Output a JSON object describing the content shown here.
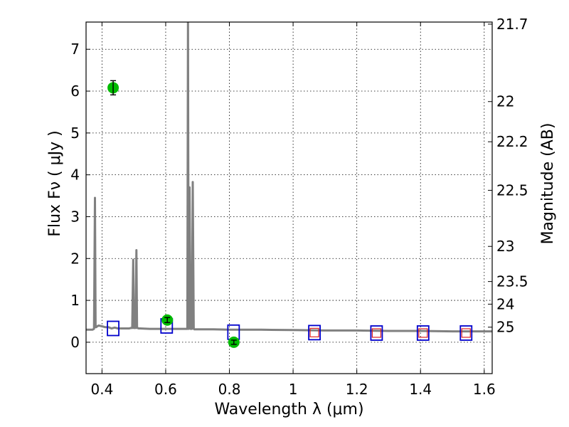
{
  "chart_data": {
    "type": "line",
    "xlabel": "Wavelength  λ (μm)",
    "ylabel": "Flux  Fν  ( μJy )",
    "y2label": "Magnitude (AB)",
    "xlim": [
      0.35,
      1.625
    ],
    "ylim": [
      -0.75,
      7.65
    ],
    "grid": true,
    "x_ticks": [
      0.4,
      0.6,
      0.8,
      1.0,
      1.2,
      1.4,
      1.6
    ],
    "x_tick_labels": [
      "0.4",
      "0.6",
      "0.8",
      "1",
      "1.2",
      "1.4",
      "1.6"
    ],
    "y_ticks": [
      0,
      1,
      2,
      3,
      4,
      5,
      6,
      7
    ],
    "y_tick_labels": [
      "0",
      "1",
      "2",
      "3",
      "4",
      "5",
      "6",
      "7"
    ],
    "y2_ticks": [
      {
        "label": "21.7",
        "flux": 7.6
      },
      {
        "label": "22",
        "flux": 5.75
      },
      {
        "label": "22.2",
        "flux": 4.79
      },
      {
        "label": "22.5",
        "flux": 3.63
      },
      {
        "label": "23",
        "flux": 2.29
      },
      {
        "label": "23.5",
        "flux": 1.45
      },
      {
        "label": "24",
        "flux": 0.91
      },
      {
        "label": "25",
        "flux": 0.36
      }
    ],
    "model_spectrum": {
      "color": "#808080",
      "x": [
        0.35,
        0.37,
        0.375,
        0.378,
        0.38,
        0.382,
        0.385,
        0.39,
        0.4,
        0.41,
        0.42,
        0.43,
        0.44,
        0.45,
        0.47,
        0.48,
        0.485,
        0.49,
        0.495,
        0.498,
        0.5,
        0.503,
        0.505,
        0.508,
        0.51,
        0.512,
        0.515,
        0.52,
        0.55,
        0.6,
        0.63,
        0.655,
        0.66,
        0.663,
        0.665,
        0.668,
        0.67,
        0.672,
        0.675,
        0.678,
        0.68,
        0.682,
        0.685,
        0.688,
        0.69,
        0.7,
        0.75,
        0.8,
        0.85,
        0.9,
        1.0,
        1.1,
        1.2,
        1.3,
        1.4,
        1.5,
        1.625
      ],
      "y": [
        0.3,
        0.3,
        0.32,
        3.45,
        0.36,
        0.36,
        0.38,
        0.4,
        0.38,
        0.36,
        0.36,
        0.33,
        0.35,
        0.33,
        0.33,
        0.33,
        0.33,
        0.34,
        0.34,
        1.97,
        0.34,
        0.34,
        0.34,
        2.2,
        0.34,
        0.34,
        0.33,
        0.33,
        0.32,
        0.32,
        0.32,
        0.32,
        0.32,
        0.32,
        0.32,
        0.32,
        7.65,
        0.32,
        3.7,
        0.32,
        0.32,
        0.32,
        3.83,
        0.32,
        0.31,
        0.31,
        0.31,
        0.3,
        0.3,
        0.3,
        0.29,
        0.28,
        0.28,
        0.27,
        0.27,
        0.26,
        0.26
      ]
    },
    "observed": {
      "color": "#00bb00",
      "points": [
        {
          "x": 0.435,
          "y": 6.08,
          "err": 0.17
        },
        {
          "x": 0.605,
          "y": 0.53,
          "err": 0.06
        },
        {
          "x": 0.814,
          "y": 0.0,
          "err": 0.05
        }
      ]
    },
    "model_bands": {
      "color": "#0000cc",
      "points": [
        {
          "x": 0.435,
          "y": 0.33
        },
        {
          "x": 0.603,
          "y": 0.39
        },
        {
          "x": 0.813,
          "y": 0.24
        },
        {
          "x": 1.067,
          "y": 0.23
        },
        {
          "x": 1.262,
          "y": 0.22
        },
        {
          "x": 1.408,
          "y": 0.22
        },
        {
          "x": 1.543,
          "y": 0.22
        }
      ]
    },
    "upper_limits": {
      "color": "#dd2222",
      "points": [
        {
          "x": 1.067,
          "y": 0.23
        },
        {
          "x": 1.262,
          "y": 0.22
        },
        {
          "x": 1.408,
          "y": 0.22
        },
        {
          "x": 1.543,
          "y": 0.22
        }
      ]
    }
  }
}
